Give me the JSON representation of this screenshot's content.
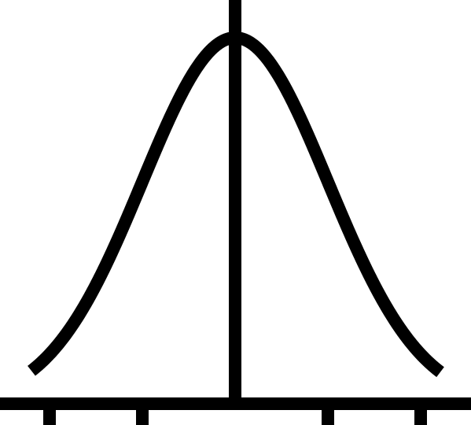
{
  "diagram": {
    "type": "normal-distribution-curve",
    "stroke_color": "#000000",
    "background_color": "#ffffff",
    "has_center_line": true,
    "tick_positions_sd": [
      -2,
      -1,
      1,
      2
    ],
    "labels": []
  }
}
